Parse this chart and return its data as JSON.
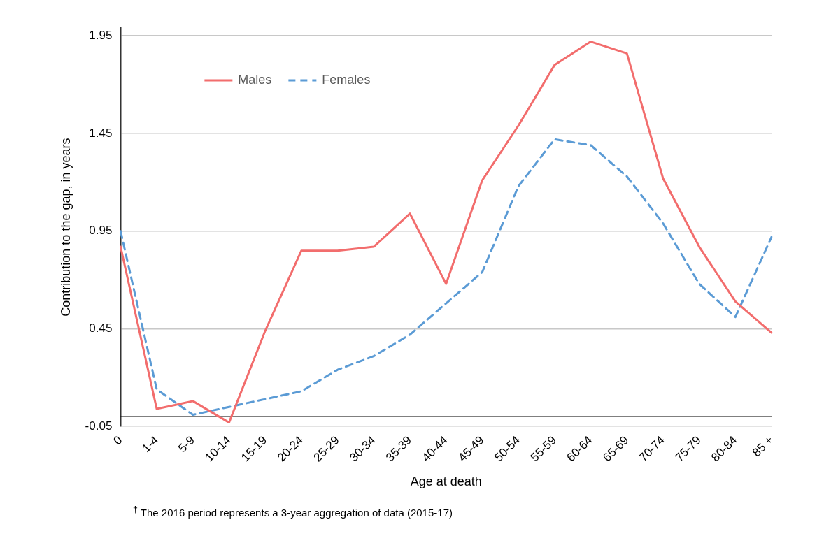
{
  "chart_data": {
    "type": "line",
    "xlabel": "Age at death",
    "ylabel": "Contribution to the gap, in years",
    "categories": [
      "0",
      "1-4",
      "5-9",
      "10-14",
      "15-19",
      "20-24",
      "25-29",
      "30-34",
      "35-39",
      "40-44",
      "45-49",
      "50-54",
      "55-59",
      "60-64",
      "65-69",
      "70-74",
      "75-79",
      "80-84",
      "85 +"
    ],
    "series": [
      {
        "name": "Males",
        "color": "#f26d6d",
        "line_style": "solid",
        "values": [
          0.87,
          0.04,
          0.08,
          -0.03,
          0.44,
          0.85,
          0.85,
          0.87,
          1.04,
          0.68,
          1.21,
          1.49,
          1.8,
          1.92,
          1.86,
          1.22,
          0.87,
          0.59,
          0.43
        ]
      },
      {
        "name": "Females",
        "color": "#5b9bd5",
        "line_style": "dashed",
        "values": [
          0.95,
          0.14,
          0.01,
          0.05,
          0.09,
          0.13,
          0.24,
          0.31,
          0.42,
          0.58,
          0.74,
          1.18,
          1.42,
          1.39,
          1.23,
          0.99,
          0.68,
          0.51,
          0.92
        ]
      }
    ],
    "ylim": [
      -0.05,
      1.99
    ],
    "yticks": [
      -0.05,
      0.45,
      0.95,
      1.45,
      1.95
    ],
    "ref_lines": [
      {
        "axis": "y",
        "value": 0,
        "color": "#000000"
      }
    ],
    "grid": "y",
    "legend": "top left",
    "marker": "none",
    "annotations": [
      "$^{†}$ The 2016 period represents a 3-year aggregation of data (2015-17)"
    ]
  }
}
